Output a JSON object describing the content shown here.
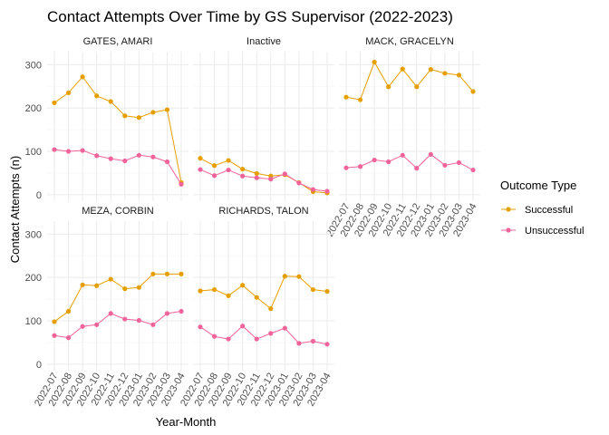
{
  "chart_data": {
    "type": "line",
    "title": "Contact Attempts Over Time by GS Supervisor (2022-2023)",
    "xlabel": "Year-Month",
    "ylabel": "Contact Attempts (n)",
    "ylim": [
      -15,
      330
    ],
    "yticks": [
      0,
      100,
      200,
      300
    ],
    "grid": true,
    "legend": {
      "title": "Outcome Type",
      "placement": "right"
    },
    "categories": [
      "2022-07",
      "2022-08",
      "2022-09",
      "2022-10",
      "2022-11",
      "2022-12",
      "2023-01",
      "2023-02",
      "2023-03",
      "2023-04"
    ],
    "series_styles": [
      {
        "name": "Successful",
        "color": "#E69F00"
      },
      {
        "name": "Unsuccessful",
        "color": "#F0649B"
      }
    ],
    "facets": [
      {
        "label": "GATES, AMARI",
        "series": [
          {
            "name": "Successful",
            "values": [
              212,
              235,
              272,
              228,
              215,
              182,
              178,
              190,
              196,
              28
            ]
          },
          {
            "name": "Unsuccessful",
            "values": [
              104,
              100,
              102,
              90,
              83,
              78,
              91,
              87,
              76,
              24
            ]
          }
        ]
      },
      {
        "label": "Inactive",
        "series": [
          {
            "name": "Successful",
            "values": [
              84,
              67,
              79,
              59,
              49,
              43,
              46,
              28,
              7,
              4
            ]
          },
          {
            "name": "Unsuccessful",
            "values": [
              58,
              44,
              57,
              43,
              39,
              36,
              48,
              27,
              12,
              8
            ]
          }
        ]
      },
      {
        "label": "MACK, GRACELYN",
        "series": [
          {
            "name": "Successful",
            "values": [
              225,
              219,
              306,
              249,
              290,
              249,
              289,
              280,
              276,
              238
            ]
          },
          {
            "name": "Unsuccessful",
            "values": [
              62,
              65,
              80,
              76,
              91,
              61,
              93,
              68,
              74,
              57
            ]
          }
        ]
      },
      {
        "label": "MEZA, CORBIN",
        "series": [
          {
            "name": "Successful",
            "values": [
              98,
              122,
              183,
              181,
              196,
              174,
              177,
              208,
              208,
              208
            ]
          },
          {
            "name": "Unsuccessful",
            "values": [
              66,
              61,
              87,
              91,
              117,
              104,
              101,
              91,
              117,
              122
            ]
          }
        ]
      },
      {
        "label": "RICHARDS, TALON",
        "series": [
          {
            "name": "Successful",
            "values": [
              169,
              172,
              158,
              182,
              154,
              128,
              203,
              202,
              172,
              168
            ]
          },
          {
            "name": "Unsuccessful",
            "values": [
              86,
              64,
              58,
              88,
              58,
              71,
              83,
              48,
              53,
              46
            ]
          }
        ]
      }
    ]
  }
}
